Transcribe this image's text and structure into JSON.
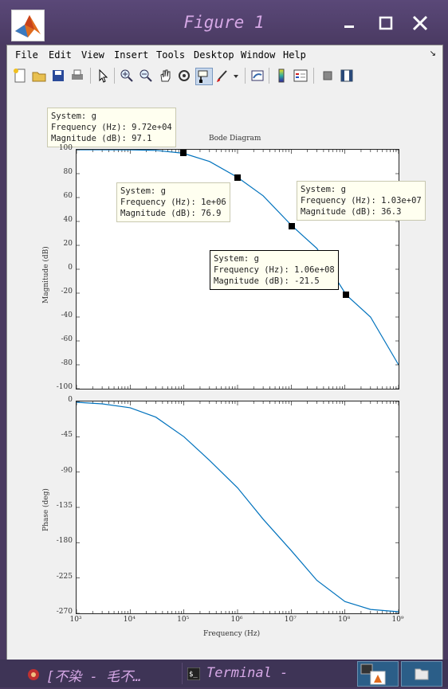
{
  "window": {
    "title": "Figure 1"
  },
  "menu": [
    "File",
    "Edit",
    "View",
    "Insert",
    "Tools",
    "Desktop",
    "Window",
    "Help"
  ],
  "menu_arrow": "↘",
  "toolbar_icons": [
    "new-figure-icon",
    "open-file-icon",
    "save-icon",
    "print-icon",
    "pointer-icon",
    "zoom-in-icon",
    "zoom-out-icon",
    "pan-icon",
    "rotate-icon",
    "data-cursor-icon",
    "brush-icon",
    "brush-dropdown-icon",
    "link-plot-icon",
    "colorbar-icon",
    "legend-icon",
    "hide-plot-tools-icon",
    "show-plot-tools-icon"
  ],
  "plot": {
    "title": "Bode Diagram",
    "mag_ylabel": "Magnitude (dB)",
    "phase_ylabel": "Phase (deg)",
    "xlabel": "Frequency (Hz)",
    "mag_yticks": [
      "100",
      "80",
      "60",
      "40",
      "20",
      "0",
      "-20",
      "-40",
      "-60",
      "-80",
      "-100"
    ],
    "phase_yticks": [
      "0",
      "-45",
      "-90",
      "-135",
      "-180",
      "-225",
      "-270"
    ],
    "xticks": [
      "10³",
      "10⁴",
      "10⁵",
      "10⁶",
      "10⁷",
      "10⁸",
      "10⁹"
    ]
  },
  "chart_data": [
    {
      "type": "line",
      "title": "Bode Diagram",
      "ylabel": "Magnitude (dB)",
      "xscale": "log",
      "xlim": [
        1000,
        1000000000
      ],
      "ylim": [
        -100,
        100
      ],
      "series": [
        {
          "x": [
            1000,
            10000,
            30000,
            97200,
            300000,
            1000000,
            3000000,
            10300000,
            30000000,
            106000000,
            300000000,
            1000000000
          ],
          "values": [
            100,
            99.9,
            99.5,
            97.1,
            90.2,
            76.9,
            61.5,
            36.3,
            17.5,
            -21.5,
            -40.0,
            -80.0
          ]
        }
      ],
      "color": "#0072bd"
    },
    {
      "type": "line",
      "ylabel": "Phase (deg)",
      "xlabel": "Frequency (Hz)",
      "xscale": "log",
      "xlim": [
        1000,
        1000000000
      ],
      "ylim": [
        -270,
        0
      ],
      "series": [
        {
          "x": [
            1000,
            3000,
            10000,
            30000,
            100000,
            300000,
            1000000,
            3000000,
            10000000,
            30000000,
            100000000,
            300000000,
            1000000000
          ],
          "values": [
            -1,
            -3,
            -8,
            -20,
            -45,
            -75,
            -110,
            -150,
            -190,
            -228,
            -255,
            -265,
            -268
          ]
        }
      ],
      "color": "#0072bd"
    }
  ],
  "datatips": [
    {
      "text": "System: g\nFrequency (Hz): 9.72e+04\nMagnitude (dB): 97.1",
      "freq": 97200,
      "mag": 97.1
    },
    {
      "text": "System: g\nFrequency (Hz): 1e+06\nMagnitude (dB): 76.9",
      "freq": 1000000,
      "mag": 76.9
    },
    {
      "text": "System: g\nFrequency (Hz): 1.03e+07\nMagnitude (dB): 36.3",
      "freq": 10300000,
      "mag": 36.3
    },
    {
      "text": "System: g\nFrequency (Hz): 1.06e+08\nMagnitude (dB): -21.5",
      "freq": 106000000,
      "mag": -21.5
    }
  ],
  "taskbar": {
    "item1": "[不染 - 毛不…",
    "item2": "Terminal -"
  },
  "colors": {
    "titlebar": "#4a3a62",
    "title_text": "#d6a8e6",
    "curve": "#0072bd"
  }
}
